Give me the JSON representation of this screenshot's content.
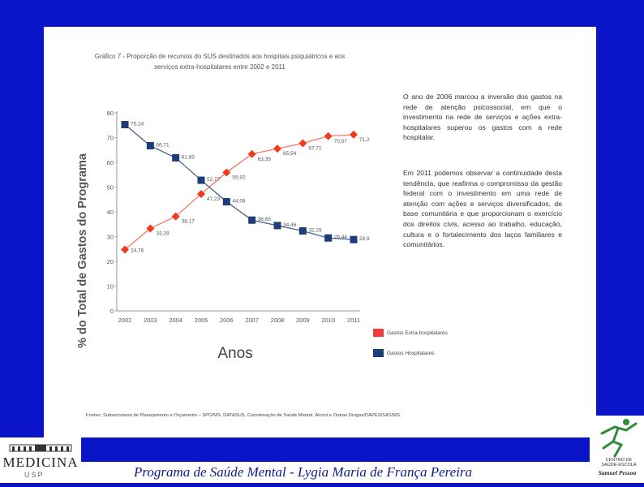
{
  "chart_data": {
    "type": "line",
    "title": "Gráfico 7 - Proporção de recursos do SUS destinados aos hospitais psiquiátricos e aos serviços extra-hospitalares entre 2002 e 2011",
    "title_lines": [
      "Gráfico 7 - Proporção de recursos do SUS destinados aos hospitais psiquiátricos e aos",
      "serviços extra-hospitalares entre 2002 e 2011"
    ],
    "xlabel": "Anos",
    "ylabel": "% do Total de Gastos do Programa",
    "x": [
      "2002",
      "2003",
      "2004",
      "2005",
      "2006",
      "2007",
      "2008",
      "2009",
      "2010",
      "2011"
    ],
    "ylim": [
      0,
      80
    ],
    "yticks": [
      0,
      10,
      20,
      30,
      40,
      50,
      60,
      70,
      80
    ],
    "series": [
      {
        "name": "Gastos Extra-hospitalares",
        "color": "#f03c1e",
        "marker": "diamond",
        "values": [
          24.76,
          33.29,
          38.17,
          47.23,
          55.92,
          63.35,
          65.54,
          67.71,
          70.57,
          71.2
        ],
        "labels": [
          "24,76",
          "33,29",
          "38,17",
          "47,23",
          "55,92",
          "63,35",
          "65,54",
          "67,71",
          "70,57",
          "71,2"
        ]
      },
      {
        "name": "Gastos Hospitalares",
        "color": "#1e3c78",
        "marker": "square",
        "values": [
          75.24,
          66.71,
          61.83,
          52.77,
          44.08,
          36.65,
          34.46,
          32.29,
          29.44,
          28.8
        ],
        "labels": [
          "75,24",
          "66,71",
          "61,83",
          "52,77",
          "44,08",
          "36,65",
          "34,46",
          "32,29",
          "29,44",
          "28,8"
        ]
      }
    ],
    "legend": [
      "Gastos Extra-hospitalares",
      "Gastos Hospitalares"
    ],
    "grid": false
  },
  "side_text": {
    "paragraph1": "O ano de 2006 marcou a inversão dos gastos na rede de atenção psicossocial, em que o investimento na rede de serviços e ações extra-hospitalares superou os gastos com a rede hospitalar.",
    "paragraph2": "Em 2011 podemos observar a continuidade desta tendência, que reafirma o compromisso da gestão federal com o investimento em uma rede de atenção com ações e serviços diversificados, de base comunitária e que proporcionam o exercício dos direitos civis, acesso ao trabalho, educação, cultura e o fortalecimento dos laços familiares e comunitários."
  },
  "source": "Fontes: Subsecretaria de Planejamento e Orçamento – SPO/MS, DATASUS, Coordenação de Saúde Mental, Álcool e Outras Drogas/DAPES/SAS/MS.",
  "footer": {
    "program": "Programa de Saúde Mental",
    "separator": "-",
    "author": "Lygia Maria de França Pereira"
  },
  "logo_left": {
    "text": "MEDICINA",
    "subtext": "USP"
  },
  "logo_right": {
    "line1": "CENTRO DE",
    "line2": "SAÚDE-ESCOLA",
    "signature": "Samuel Pessoa",
    "colors": {
      "green": "#2f8a3a"
    }
  }
}
